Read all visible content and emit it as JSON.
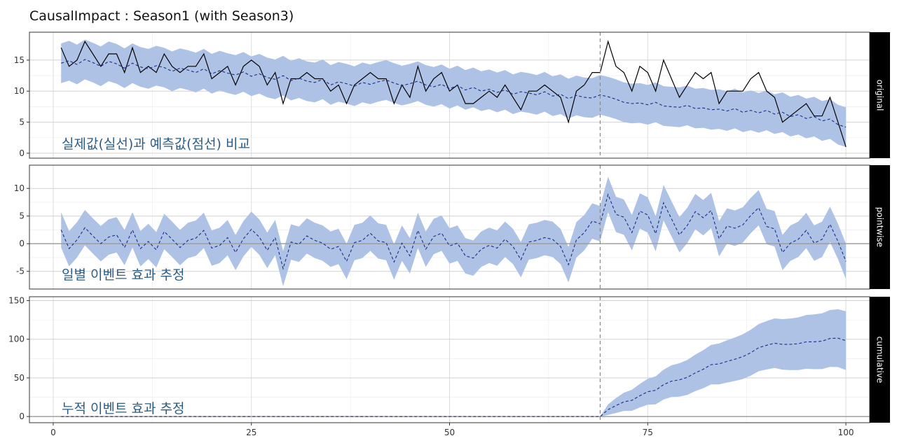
{
  "chart_data": {
    "type": "line",
    "title": "CausalImpact : Season1 (with Season3)",
    "intervention_x": 69,
    "x": {
      "range": [
        -3,
        103
      ],
      "ticks": [
        0,
        25,
        50,
        75,
        100
      ]
    },
    "colors": {
      "band": "#aec2e6",
      "actual": "#000000",
      "predicted": "#1c2a8a",
      "intervention": "#888888",
      "strip": "#000000"
    },
    "panels": [
      {
        "id": "original",
        "strip_label": "original",
        "annotation": "실제값(실선)과 예측값(점선) 비교",
        "ylim": [
          -0.8,
          19.5
        ],
        "yticks": [
          0,
          5,
          10,
          15
        ],
        "actual": [
          17,
          14,
          15,
          18,
          16,
          14,
          16,
          16,
          13,
          17,
          13,
          14,
          13,
          16,
          14,
          13,
          14,
          14,
          16,
          12,
          13,
          14,
          11,
          14,
          15,
          14,
          11,
          13,
          8,
          12,
          12,
          13,
          12,
          12,
          10,
          11,
          8,
          11,
          12,
          13,
          12,
          12,
          8,
          11,
          9,
          14,
          10,
          12,
          13,
          10,
          11,
          8,
          8,
          9,
          10,
          9,
          11,
          9,
          7,
          10,
          10,
          11,
          10,
          9,
          5,
          10,
          11,
          13,
          13,
          18,
          14,
          13,
          10,
          14,
          13,
          10,
          15,
          12,
          9,
          11,
          13,
          12,
          13,
          8,
          10,
          10,
          10,
          12,
          13,
          10,
          9,
          5,
          6,
          7,
          8,
          6,
          6,
          9,
          5,
          1
        ],
        "predicted": [
          14.5,
          14.9,
          14.3,
          15.1,
          14.6,
          14.0,
          14.8,
          14.4,
          13.7,
          14.5,
          13.9,
          13.6,
          14.1,
          13.8,
          13.2,
          13.7,
          13.4,
          13.0,
          13.6,
          12.8,
          13.3,
          12.9,
          12.6,
          13.1,
          12.4,
          12.8,
          12.2,
          11.9,
          12.5,
          11.7,
          12.1,
          11.6,
          11.4,
          11.9,
          11.0,
          11.5,
          11.2,
          10.8,
          11.4,
          11.1,
          11.5,
          11.8,
          11.3,
          10.9,
          11.2,
          11.6,
          11.0,
          10.7,
          11.1,
          10.4,
          10.9,
          10.2,
          10.6,
          10.0,
          10.3,
          9.8,
          10.2,
          9.5,
          9.9,
          9.7,
          9.4,
          9.9,
          9.2,
          9.5,
          8.8,
          9.3,
          9.0,
          8.9,
          9.4,
          9.1,
          8.7,
          8.2,
          8.0,
          8.1,
          7.8,
          8.2,
          7.6,
          7.5,
          7.4,
          7.7,
          7.2,
          7.3,
          7.0,
          7.1,
          6.8,
          7.2,
          6.6,
          6.9,
          6.5,
          6.9,
          6.3,
          6.6,
          5.9,
          6.2,
          5.6,
          5.9,
          5.2,
          5.5,
          4.6,
          4.2
        ],
        "lower_offset": 3.2,
        "upper_offset": 3.2
      },
      {
        "id": "pointwise",
        "strip_label": "pointwise",
        "annotation": "일별 이벤트 효과 추정",
        "ylim": [
          -8.2,
          14.2
        ],
        "yticks": [
          -5,
          0,
          5,
          10
        ],
        "hline": 0,
        "lower_offset": 3.2,
        "upper_offset": 3.2
      },
      {
        "id": "cumulative",
        "strip_label": "cumulative",
        "annotation": "누적 이벤트 효과 추정",
        "ylim": [
          -8,
          155
        ],
        "yticks": [
          0,
          50,
          100,
          150
        ],
        "hline": 0,
        "band_half_width_at_end": 38
      }
    ]
  }
}
